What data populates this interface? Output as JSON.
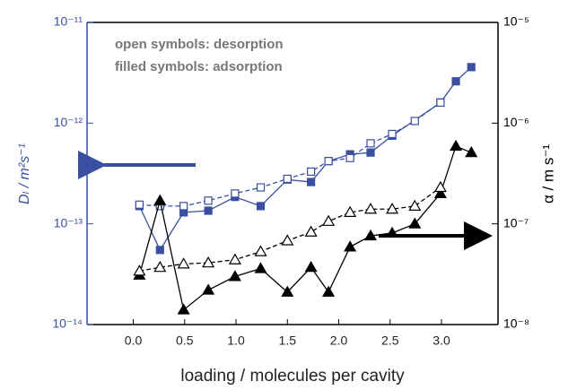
{
  "chart_data": {
    "type": "scatter",
    "annotations": [
      "open symbols: desorption",
      "filled symbols: adsorption"
    ],
    "xlabel": "loading / molecules per cavity",
    "ylabel": "Dₗ / m²s⁻¹",
    "y2label": "α / m s⁻¹",
    "xlim": [
      -0.45,
      3.55
    ],
    "xticks": [
      {
        "value": 0,
        "label": "0.0"
      },
      0.5,
      {
        "value": 1,
        "label": "1.0"
      },
      1.5,
      {
        "value": 2,
        "label": "2.0"
      },
      2.5,
      {
        "value": 3,
        "label": "3.0"
      }
    ],
    "ylog": true,
    "ylim": [
      1e-14,
      1e-11
    ],
    "yticks": [
      {
        "value": 1e-14,
        "label": "10⁻¹⁴"
      },
      {
        "value": 1e-13,
        "label": "10⁻¹³"
      },
      {
        "value": 1e-12,
        "label": "10⁻¹²"
      },
      {
        "value": 1e-11,
        "label": "10⁻¹¹"
      }
    ],
    "y_color": "#3a4fa0",
    "y2log": true,
    "y2lim": [
      1e-08,
      1e-05
    ],
    "y2ticks": [
      {
        "value": 1e-08,
        "label": "10⁻⁸"
      },
      {
        "value": 1e-07,
        "label": "10⁻⁷"
      },
      {
        "value": 1e-06,
        "label": "10⁻⁶"
      },
      {
        "value": 1e-05,
        "label": "10⁻⁵"
      }
    ],
    "series": [
      {
        "color": "#3a4fa0",
        "marker": "square",
        "filled": true,
        "dashed": false,
        "x": [
          0.06,
          0.26,
          0.49,
          0.73,
          0.99,
          1.24,
          1.5,
          1.73,
          1.9,
          2.11,
          2.31,
          2.52,
          2.99,
          3.14,
          3.29
        ],
        "values": [
          1.5e-13,
          5.5e-14,
          1.3e-13,
          1.35e-13,
          1.85e-13,
          1.5e-13,
          2.75e-13,
          2.6e-13,
          4.2e-13,
          4.9e-13,
          5.1e-13,
          7.5e-13,
          1.6e-12,
          2.6e-12,
          3.6e-12
        ]
      },
      {
        "color": "#3a4fa0",
        "marker": "square",
        "filled": false,
        "dashed": true,
        "x": [
          0.06,
          0.26,
          0.49,
          0.73,
          0.99,
          1.24,
          1.5,
          1.73,
          1.9,
          2.11,
          2.31,
          2.52,
          2.74,
          2.99
        ],
        "values": [
          1.55e-13,
          1.5e-13,
          1.5e-13,
          1.7e-13,
          2e-13,
          2.3e-13,
          2.8e-13,
          3.3e-13,
          4.2e-13,
          4.5e-13,
          6.3e-13,
          7.8e-13,
          1.05e-12,
          1.6e-12
        ]
      },
      {
        "color": "#000000",
        "marker": "triangle",
        "filled": true,
        "dashed": false,
        "axis": "y2",
        "x": [
          0.06,
          0.26,
          0.49,
          0.73,
          0.99,
          1.24,
          1.5,
          1.73,
          1.9,
          2.11,
          2.31,
          2.52,
          2.74,
          2.99,
          3.14,
          3.29
        ],
        "values": [
          3.1e-08,
          1.7e-07,
          1.4e-08,
          2.2e-08,
          3e-08,
          3.6e-08,
          2.1e-08,
          3.7e-08,
          2.1e-08,
          5.9e-08,
          7.6e-08,
          8.1e-08,
          1e-07,
          2e-07,
          5.9e-07,
          5.1e-07
        ]
      },
      {
        "color": "#000000",
        "marker": "triangle",
        "filled": false,
        "dashed": true,
        "axis": "y2",
        "x": [
          0.06,
          0.26,
          0.49,
          0.73,
          0.99,
          1.24,
          1.5,
          1.73,
          1.9,
          2.11,
          2.31,
          2.52,
          2.74,
          2.99
        ],
        "values": [
          3.4e-08,
          3.7e-08,
          4e-08,
          4.1e-08,
          4.4e-08,
          5.3e-08,
          6.8e-08,
          8.3e-08,
          1.06e-07,
          1.3e-07,
          1.4e-07,
          1.4e-07,
          1.5e-07,
          2.3e-07
        ]
      }
    ]
  }
}
